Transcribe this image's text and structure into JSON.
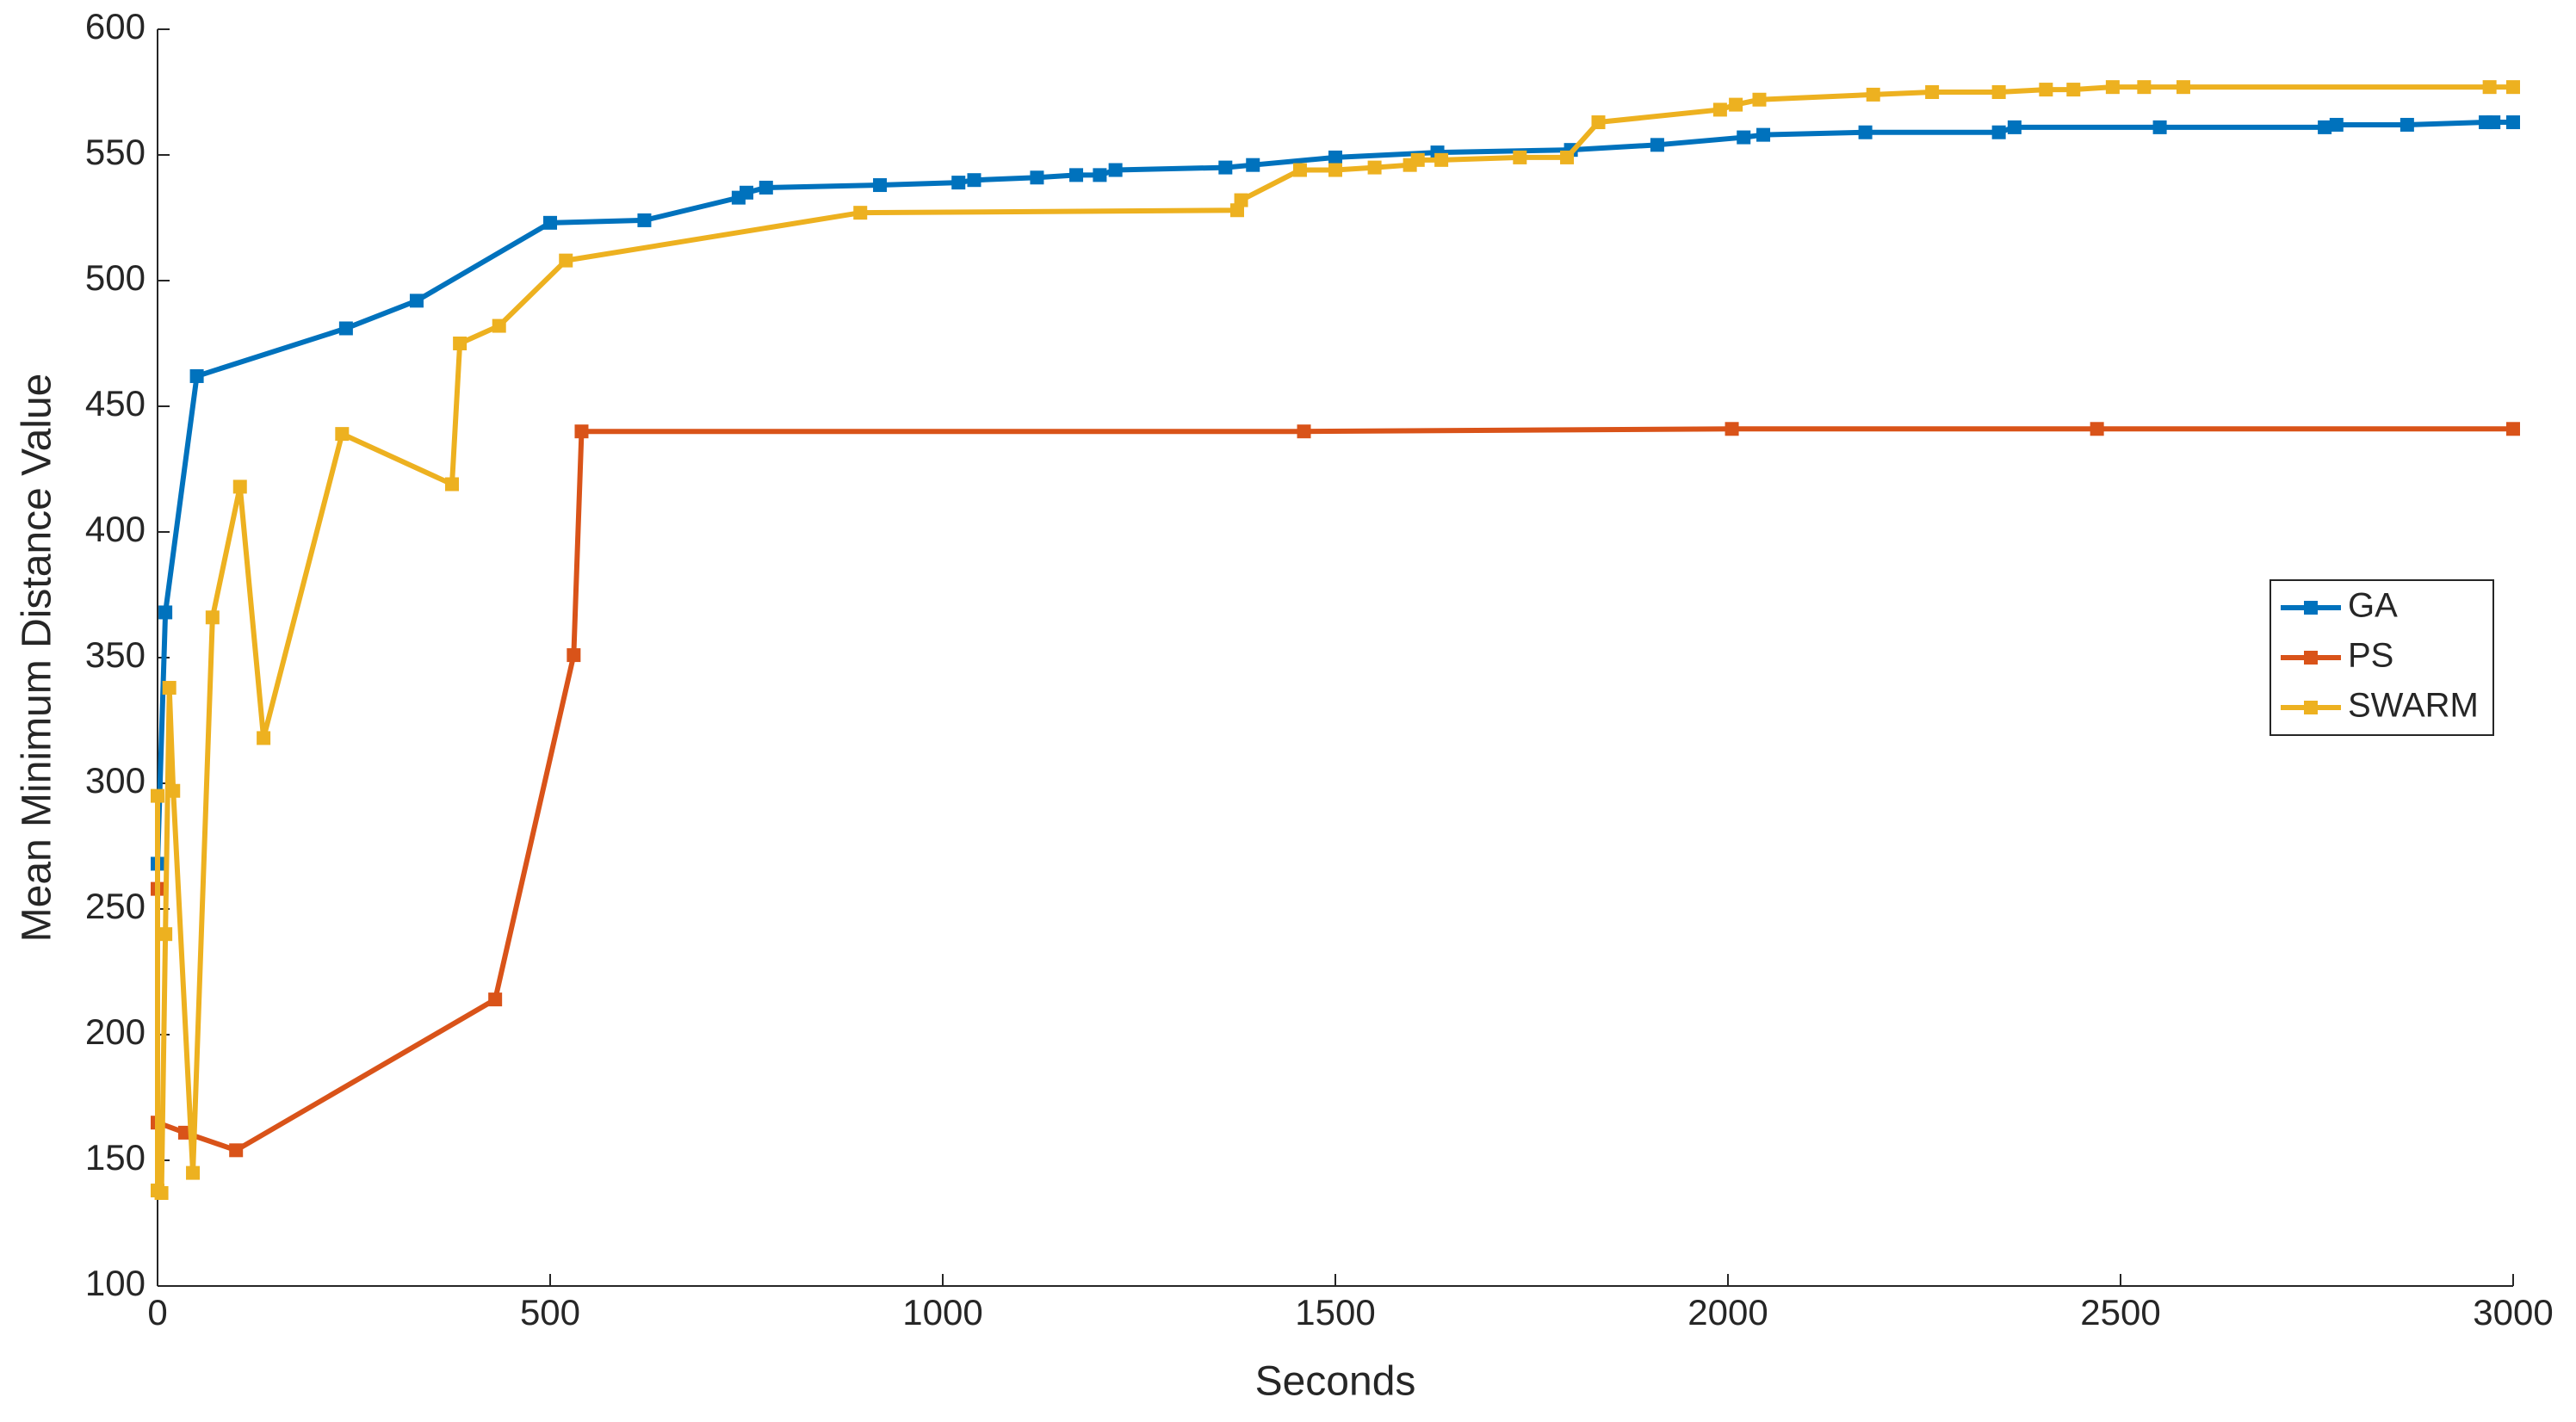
{
  "chart_data": {
    "type": "line",
    "xlabel": "Seconds",
    "ylabel": "Mean Minimum Distance Value",
    "xlim": [
      0,
      3000
    ],
    "xticks": [
      0,
      500,
      1000,
      1500,
      2000,
      2500,
      3000
    ],
    "ylim": [
      100,
      600
    ],
    "yticks": [
      100,
      150,
      200,
      250,
      300,
      350,
      400,
      450,
      500,
      550,
      600
    ],
    "grid": false,
    "legend": "right",
    "series": [
      {
        "name": "GA",
        "color": "#0072BD",
        "x": [
          0,
          10,
          50,
          240,
          330,
          500,
          620,
          740,
          750,
          775,
          920,
          1020,
          1040,
          1120,
          1170,
          1200,
          1220,
          1360,
          1395,
          1500,
          1630,
          1800,
          1910,
          2020,
          2045,
          2175,
          2345,
          2365,
          2550,
          2760,
          2775,
          2865,
          2965,
          2975,
          3000
        ],
        "values": [
          268,
          368,
          462,
          481,
          492,
          523,
          524,
          533,
          535,
          537,
          538,
          539,
          540,
          541,
          542,
          542,
          544,
          545,
          546,
          549,
          551,
          552,
          554,
          557,
          558,
          559,
          559,
          561,
          561,
          561,
          562,
          562,
          563,
          563,
          563
        ]
      },
      {
        "name": "PS",
        "color": "#D95319",
        "x": [
          0,
          0,
          35,
          100,
          430,
          530,
          540,
          1460,
          2005,
          2470,
          3000
        ],
        "values": [
          258,
          165,
          161,
          154,
          214,
          351,
          440,
          440,
          441,
          441,
          441
        ]
      },
      {
        "name": "SWARM",
        "color": "#EDB120",
        "x": [
          0,
          0,
          5,
          10,
          15,
          20,
          45,
          70,
          105,
          135,
          235,
          375,
          385,
          435,
          520,
          895,
          1375,
          1380,
          1455,
          1500,
          1550,
          1595,
          1605,
          1635,
          1735,
          1795,
          1835,
          1990,
          2010,
          2040,
          2185,
          2260,
          2345,
          2405,
          2440,
          2490,
          2530,
          2580,
          2970,
          3000
        ],
        "values": [
          295,
          138,
          137,
          240,
          338,
          297,
          145,
          366,
          418,
          318,
          439,
          419,
          475,
          482,
          508,
          527,
          528,
          532,
          544,
          544,
          545,
          546,
          548,
          548,
          549,
          549,
          563,
          568,
          570,
          572,
          574,
          575,
          575,
          576,
          576,
          577,
          577,
          577,
          577,
          577
        ]
      }
    ]
  }
}
